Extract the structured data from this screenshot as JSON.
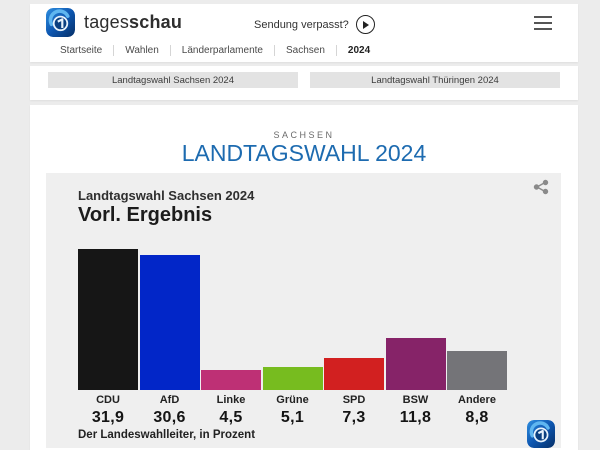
{
  "header": {
    "brand_regular": "tages",
    "brand_bold": "schau",
    "watch_label": "Sendung verpasst?",
    "icons": {
      "brand_logo": "tagesschau-globe-logo",
      "play": "play-circle-icon",
      "menu": "hamburger-menu-icon"
    }
  },
  "breadcrumb": {
    "items": [
      {
        "label": "Startseite"
      },
      {
        "label": "Wahlen"
      },
      {
        "label": "Länderparlamente"
      },
      {
        "label": "Sachsen"
      },
      {
        "label": "2024"
      }
    ]
  },
  "quicklinks": [
    {
      "label": "Landtagswahl Sachsen 2024"
    },
    {
      "label": "Landtagswahl Thüringen 2024"
    }
  ],
  "page": {
    "eyebrow": "SACHSEN",
    "title": "LANDTAGSWAHL 2024",
    "title_color": "#1d6bb0"
  },
  "chart_data": {
    "type": "bar",
    "title": "Landtagswahl Sachsen 2024",
    "subtitle": "Vorl. Ergebnis",
    "source": "Der Landeswahlleiter, in Prozent",
    "unit": "percent",
    "categories": [
      "CDU",
      "AfD",
      "Linke",
      "Grüne",
      "SPD",
      "BSW",
      "Andere"
    ],
    "values": [
      31.9,
      30.6,
      4.5,
      5.1,
      7.3,
      11.8,
      8.8
    ],
    "value_labels": [
      "31,9",
      "30,6",
      "4,5",
      "5,1",
      "7,3",
      "11,8",
      "8,8"
    ],
    "colors": [
      "#161616",
      "#0226c8",
      "#be3075",
      "#77bc1f",
      "#d22020",
      "#862368",
      "#747478"
    ],
    "ylim": [
      0,
      33
    ],
    "grid": false,
    "legend": false,
    "icons": {
      "share": "share-icon",
      "watermark": "tagesschau-globe-logo"
    }
  }
}
